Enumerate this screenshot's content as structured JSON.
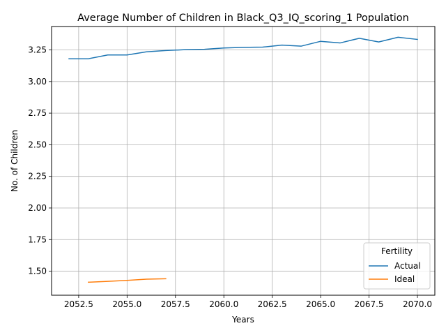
{
  "chart_data": {
    "type": "line",
    "title": "Average Number of Children in Black_Q3_IQ_scoring_1 Population",
    "xlabel": "Years",
    "ylabel": "No. of Children",
    "xlim": [
      2051.1,
      2070.9
    ],
    "ylim": [
      1.31,
      3.435
    ],
    "xticks": [
      2052.5,
      2055.0,
      2057.5,
      2060.0,
      2062.5,
      2065.0,
      2067.5,
      2070.0
    ],
    "xtick_labels": [
      "2052.5",
      "2055.0",
      "2057.5",
      "2060.0",
      "2062.5",
      "2065.0",
      "2067.5",
      "2070.0"
    ],
    "yticks": [
      1.5,
      1.75,
      2.0,
      2.25,
      2.5,
      2.75,
      3.0,
      3.25
    ],
    "ytick_labels": [
      "1.50",
      "1.75",
      "2.00",
      "2.25",
      "2.50",
      "2.75",
      "3.00",
      "3.25"
    ],
    "grid": true,
    "legend": {
      "title": "Fertility",
      "position": "lower-right"
    },
    "series": [
      {
        "name": "Actual",
        "color": "#1f77b4",
        "x": [
          2052,
          2053,
          2054,
          2055,
          2056,
          2057,
          2058,
          2059,
          2060,
          2061,
          2062,
          2063,
          2064,
          2065,
          2066,
          2067,
          2068,
          2069,
          2070
        ],
        "y": [
          3.18,
          3.18,
          3.21,
          3.21,
          3.235,
          3.245,
          3.252,
          3.255,
          3.265,
          3.27,
          3.272,
          3.288,
          3.28,
          3.318,
          3.305,
          3.342,
          3.313,
          3.35,
          3.333
        ]
      },
      {
        "name": "Ideal",
        "color": "#ff7f0e",
        "x": [
          2053,
          2054,
          2055,
          2056,
          2057
        ],
        "y": [
          1.413,
          1.42,
          1.427,
          1.437,
          1.44
        ]
      }
    ]
  }
}
